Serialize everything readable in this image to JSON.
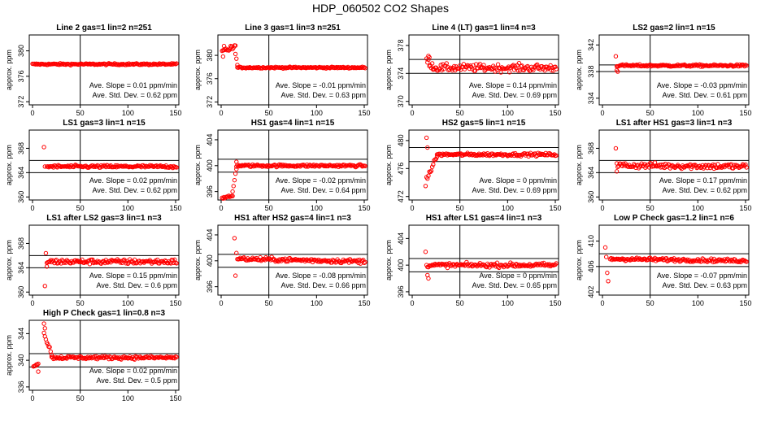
{
  "figure": {
    "title": "HDP_060502  CO2 Shapes",
    "slope_label": "Ave. Slope =",
    "slope_unit": "ppm/min",
    "std_label": "Ave. Std. Dev. =",
    "std_unit": "ppm",
    "ylabel": "approx. ppm",
    "colors": {
      "points": "#ff0000",
      "lines": "#000000",
      "background": "#ffffff"
    }
  },
  "chart_data": [
    {
      "type": "scatter",
      "title": "Line 2 gas=1 lin=2 n=251",
      "xlim": [
        0,
        150
      ],
      "ylim": [
        371.5,
        382.5
      ],
      "xticks": [
        0,
        50,
        100,
        150
      ],
      "yticks": [
        372,
        376,
        380
      ],
      "hlines": [],
      "vline": 50,
      "slope": "0.01",
      "std": "0.62",
      "segments": [
        {
          "x0": 0,
          "x1": 151,
          "y0": 377.9,
          "y1": 377.9,
          "noise": 0.12
        }
      ],
      "outliers": []
    },
    {
      "type": "scatter",
      "title": "Line 3 gas=1 lin=3 n=251",
      "xlim": [
        0,
        150
      ],
      "ylim": [
        371.5,
        383.5
      ],
      "xticks": [
        0,
        50,
        100,
        150
      ],
      "yticks": [
        372,
        376,
        380
      ],
      "hlines": [],
      "vline": 50,
      "slope": "-0.01",
      "std": "0.63",
      "segments": [
        {
          "x0": 1,
          "x1": 15,
          "y0": 380.7,
          "y1": 381.4,
          "noise": 0.4
        },
        {
          "x0": 15,
          "x1": 17,
          "y0": 380.5,
          "y1": 378.3,
          "noise": 0.2
        },
        {
          "x0": 17,
          "x1": 151,
          "y0": 377.9,
          "y1": 377.9,
          "noise": 0.12
        }
      ],
      "outliers": [
        [
          2,
          379.8
        ],
        [
          3,
          381.6
        ],
        [
          10,
          381.6
        ]
      ]
    },
    {
      "type": "scatter",
      "title": "Line 4 (LT) gas=1 lin=4 n=3",
      "xlim": [
        0,
        150
      ],
      "ylim": [
        369.5,
        379.5
      ],
      "xticks": [
        0,
        50,
        100,
        150
      ],
      "yticks": [
        370,
        374,
        378
      ],
      "hlines": [
        376,
        374
      ],
      "vline": 50,
      "slope": "0.14",
      "std": "0.69",
      "segments": [
        {
          "x0": 15,
          "x1": 22,
          "y0": 375.8,
          "y1": 375.0,
          "noise": 0.5
        },
        {
          "x0": 22,
          "x1": 151,
          "y0": 374.8,
          "y1": 374.8,
          "noise": 0.5
        }
      ],
      "outliers": [
        [
          17,
          376.5
        ],
        [
          18,
          376.3
        ]
      ]
    },
    {
      "type": "scatter",
      "title": "LS2 gas=2 lin=1 n=15",
      "xlim": [
        0,
        150
      ],
      "ylim": [
        333,
        343.5
      ],
      "xticks": [
        0,
        50,
        100,
        150
      ],
      "yticks": [
        334,
        338,
        342
      ],
      "hlines": [
        339,
        338
      ],
      "vline": 50,
      "slope": "-0.03",
      "std": "0.61",
      "segments": [
        {
          "x0": 15,
          "x1": 151,
          "y0": 338.9,
          "y1": 338.9,
          "noise": 0.15
        }
      ],
      "outliers": [
        [
          14,
          340.3
        ],
        [
          15,
          338.2
        ],
        [
          16,
          338.0
        ]
      ]
    },
    {
      "type": "scatter",
      "title": "LS1 gas=3 lin=1 n=15",
      "xlim": [
        0,
        150
      ],
      "ylim": [
        359.5,
        371
      ],
      "xticks": [
        0,
        50,
        100,
        150
      ],
      "yticks": [
        360,
        364,
        368
      ],
      "hlines": [
        366,
        364
      ],
      "vline": 50,
      "slope": "0.02",
      "std": "0.62",
      "segments": [
        {
          "x0": 15,
          "x1": 151,
          "y0": 365.0,
          "y1": 365.0,
          "noise": 0.22
        }
      ],
      "outliers": [
        [
          12,
          368.2
        ],
        [
          13,
          365.0
        ]
      ]
    },
    {
      "type": "scatter",
      "title": "HS1 gas=4 lin=1 n=15",
      "xlim": [
        0,
        150
      ],
      "ylim": [
        394.7,
        405.5
      ],
      "xticks": [
        0,
        50,
        100,
        150
      ],
      "yticks": [
        396,
        400,
        404
      ],
      "hlines": [
        401,
        399
      ],
      "vline": 50,
      "slope": "-0.02",
      "std": "0.64",
      "segments": [
        {
          "x0": 1,
          "x1": 12,
          "y0": 395.0,
          "y1": 395.3,
          "noise": 0.12
        },
        {
          "x0": 12,
          "x1": 16,
          "y0": 396.0,
          "y1": 399.6,
          "noise": 0.3
        },
        {
          "x0": 16,
          "x1": 151,
          "y0": 400.0,
          "y1": 400.0,
          "noise": 0.18
        }
      ],
      "outliers": [
        [
          16,
          400.6
        ]
      ]
    },
    {
      "type": "scatter",
      "title": "HS2 gas=5 lin=1 n=15",
      "xlim": [
        0,
        150
      ],
      "ylim": [
        471.5,
        481.5
      ],
      "xticks": [
        0,
        50,
        100,
        150
      ],
      "yticks": [
        472,
        476,
        480
      ],
      "hlines": [
        479,
        477
      ],
      "vline": 50,
      "slope": "0",
      "std": "0.69",
      "segments": [
        {
          "x0": 15,
          "x1": 26,
          "y0": 474.4,
          "y1": 477.8,
          "noise": 0.3
        },
        {
          "x0": 26,
          "x1": 151,
          "y0": 478.0,
          "y1": 478.0,
          "noise": 0.2
        }
      ],
      "outliers": [
        [
          14,
          473.5
        ],
        [
          15,
          480.4
        ],
        [
          16,
          479.0
        ]
      ]
    },
    {
      "type": "scatter",
      "title": "LS1 after HS1 gas=3 lin=1 n=3",
      "xlim": [
        0,
        150
      ],
      "ylim": [
        359.5,
        371
      ],
      "xticks": [
        0,
        50,
        100,
        150
      ],
      "yticks": [
        360,
        364,
        368
      ],
      "hlines": [
        366,
        364
      ],
      "vline": 50,
      "slope": "0.17",
      "std": "0.62",
      "segments": [
        {
          "x0": 15,
          "x1": 151,
          "y0": 365.2,
          "y1": 365.0,
          "noise": 0.45
        }
      ],
      "outliers": [
        [
          14,
          368.0
        ],
        [
          15,
          364.2
        ]
      ]
    },
    {
      "type": "scatter",
      "title": "LS1 after LS2 gas=3 lin=1 n=3",
      "xlim": [
        0,
        150
      ],
      "ylim": [
        359.5,
        371
      ],
      "xticks": [
        0,
        50,
        100,
        150
      ],
      "yticks": [
        360,
        364,
        368
      ],
      "hlines": [
        366,
        364
      ],
      "vline": 50,
      "slope": "0.15",
      "std": "0.6",
      "segments": [
        {
          "x0": 15,
          "x1": 151,
          "y0": 365.0,
          "y1": 365.0,
          "noise": 0.38
        }
      ],
      "outliers": [
        [
          13,
          361.0
        ],
        [
          14,
          366.4
        ],
        [
          15,
          364.2
        ]
      ]
    },
    {
      "type": "scatter",
      "title": "HS1 after HS2 gas=4 lin=1 n=3",
      "xlim": [
        0,
        150
      ],
      "ylim": [
        394.7,
        405.5
      ],
      "xticks": [
        0,
        50,
        100,
        150
      ],
      "yticks": [
        396,
        400,
        404
      ],
      "hlines": [
        401,
        399
      ],
      "vline": 50,
      "slope": "-0.08",
      "std": "0.66",
      "segments": [
        {
          "x0": 17,
          "x1": 151,
          "y0": 400.3,
          "y1": 399.9,
          "noise": 0.3
        }
      ],
      "outliers": [
        [
          14,
          403.5
        ],
        [
          15,
          397.7
        ],
        [
          16,
          401.2
        ]
      ]
    },
    {
      "type": "scatter",
      "title": "HS1 after LS1 gas=4 lin=1 n=3",
      "xlim": [
        0,
        150
      ],
      "ylim": [
        395.5,
        406
      ],
      "xticks": [
        0,
        50,
        100,
        150
      ],
      "yticks": [
        396,
        400,
        404
      ],
      "hlines": [
        401,
        399
      ],
      "vline": 50,
      "slope": "0",
      "std": "0.65",
      "segments": [
        {
          "x0": 15,
          "x1": 151,
          "y0": 400.0,
          "y1": 400.0,
          "noise": 0.3
        }
      ],
      "outliers": [
        [
          14,
          402.0
        ],
        [
          16,
          398.5
        ],
        [
          17,
          398.0
        ]
      ]
    },
    {
      "type": "scatter",
      "title": "Low P Check gas=1.2 lin=1 n=6",
      "xlim": [
        0,
        150
      ],
      "ylim": [
        401.5,
        412.5
      ],
      "xticks": [
        0,
        50,
        100,
        150
      ],
      "yticks": [
        402,
        406,
        410
      ],
      "hlines": [
        408,
        406
      ],
      "vline": 50,
      "slope": "-0.07",
      "std": "0.63",
      "segments": [
        {
          "x0": 8,
          "x1": 151,
          "y0": 407.2,
          "y1": 406.9,
          "noise": 0.25
        }
      ],
      "outliers": [
        [
          3,
          409.0
        ],
        [
          4,
          407.5
        ],
        [
          5,
          405.0
        ],
        [
          6,
          403.7
        ]
      ]
    },
    {
      "type": "scatter",
      "title": "High P Check gas=1 lin=0.8 n=3",
      "xlim": [
        0,
        150
      ],
      "ylim": [
        335.5,
        346
      ],
      "xticks": [
        0,
        50,
        100,
        150
      ],
      "yticks": [
        336,
        340,
        344
      ],
      "hlines": [
        341,
        339
      ],
      "vline": 50,
      "slope": "0.02",
      "std": "0.5",
      "segments": [
        {
          "x0": 1,
          "x1": 6,
          "y0": 339.1,
          "y1": 339.5,
          "noise": 0.1
        },
        {
          "x0": 12,
          "x1": 20,
          "y0": 344.0,
          "y1": 341.0,
          "noise": 0.3
        },
        {
          "x0": 20,
          "x1": 151,
          "y0": 340.4,
          "y1": 340.4,
          "noise": 0.22
        }
      ],
      "outliers": [
        [
          6,
          338.3
        ],
        [
          12,
          345.5
        ],
        [
          13,
          344.8
        ]
      ]
    }
  ]
}
